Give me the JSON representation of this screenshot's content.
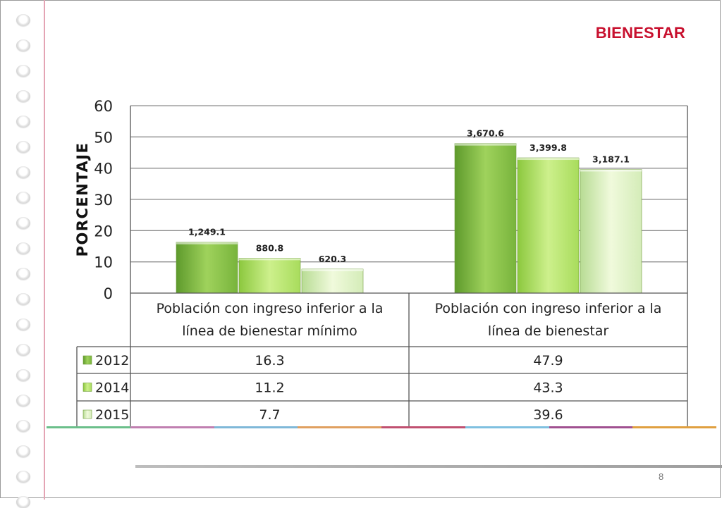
{
  "slide": {
    "title": "BIENESTAR",
    "page_number": "8"
  },
  "colors": {
    "title": "#c8102e",
    "margin_line": "#e4a4b4",
    "series": [
      "#7fb83e",
      "#a8de5c",
      "#d8f0b4"
    ],
    "stripe": [
      "#6bbf8a",
      "#c07fb0",
      "#7fb8d8",
      "#e0a060",
      "#c05070",
      "#7fc0e0",
      "#a05090",
      "#e0a040"
    ]
  },
  "chart_data": {
    "type": "bar",
    "ylabel": "PORCENTAJE",
    "ylim": [
      0,
      60
    ],
    "yticks": [
      "0",
      "10",
      "20",
      "30",
      "40",
      "50",
      "60"
    ],
    "grid": true,
    "categories": [
      [
        "Población con ingreso inferior a la",
        "línea de bienestar mínimo"
      ],
      [
        "Población con ingreso inferior a la",
        "línea de bienestar"
      ]
    ],
    "series": [
      {
        "name": "2012",
        "values": [
          16.3,
          47.9
        ],
        "display_values": [
          "16.3",
          "47.9"
        ],
        "labels": [
          "1,249.1",
          "3,670.6"
        ]
      },
      {
        "name": "2014",
        "values": [
          11.2,
          43.3
        ],
        "display_values": [
          "11.2",
          "43.3"
        ],
        "labels": [
          "880.8",
          "3,399.8"
        ]
      },
      {
        "name": "2015",
        "values": [
          7.7,
          39.6
        ],
        "display_values": [
          "7.7",
          "39.6"
        ],
        "labels": [
          "620.3",
          "3,187.1"
        ]
      }
    ],
    "legend": "data-table-left"
  }
}
